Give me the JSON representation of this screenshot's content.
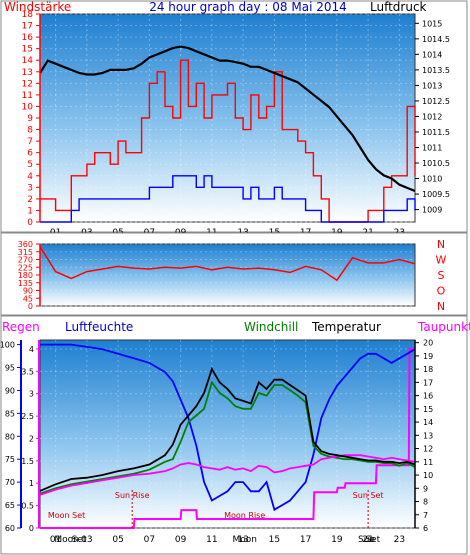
{
  "chart_data": [
    {
      "type": "line",
      "title": "24 hour graph day : 08 Mai 2014",
      "left_axis_label": "Windstärke",
      "right_axis_label": "Luftdruck",
      "x_tick_labels": [
        "01",
        "03",
        "05",
        "07",
        "09",
        "11",
        "13",
        "15",
        "17",
        "19",
        "21",
        "23"
      ],
      "x_range": [
        0,
        24
      ],
      "y_left_range": [
        0,
        18
      ],
      "y_left_ticks": [
        0,
        1,
        2,
        3,
        4,
        5,
        6,
        7,
        8,
        9,
        10,
        11,
        12,
        13,
        14,
        15,
        16,
        17,
        18
      ],
      "y_right_range": [
        1008.6,
        1015.3
      ],
      "y_right_ticks": [
        "1009",
        "1009.5",
        "1010",
        "1010.5",
        "1011",
        "1011.5",
        "1012",
        "1012.5",
        "1013",
        "1013.5",
        "1014",
        "1014.5",
        "1015"
      ],
      "series": [
        {
          "key": "gust",
          "color": "#ff0000",
          "axis": "left",
          "x": [
            0,
            0.5,
            1,
            1.5,
            2,
            2.5,
            3,
            3.5,
            4,
            4.5,
            5,
            5.5,
            6,
            6.5,
            7,
            7.5,
            8,
            8.5,
            9,
            9.5,
            10,
            10.5,
            11,
            11.5,
            12,
            12.5,
            13,
            13.5,
            14,
            14.5,
            15,
            15.5,
            16,
            16.5,
            17,
            17.5,
            18,
            18.5,
            19,
            19.5,
            20,
            20.5,
            21,
            21.5,
            22,
            22.5,
            23,
            23.5,
            24
          ],
          "values": [
            2,
            2,
            1,
            1,
            4,
            4,
            5,
            6,
            6,
            5,
            7,
            6,
            6,
            9,
            12,
            13,
            10,
            9,
            14,
            10,
            12,
            9,
            11,
            11,
            12,
            9,
            8,
            11,
            9,
            10,
            13,
            8,
            8,
            7,
            6,
            4,
            2,
            0,
            0,
            0,
            0,
            0,
            1,
            1,
            3,
            4,
            4,
            10,
            4
          ]
        },
        {
          "key": "wind",
          "color": "#0000ff",
          "axis": "left",
          "x": [
            0,
            0.5,
            1,
            1.5,
            2,
            2.5,
            3,
            3.5,
            4,
            4.5,
            5,
            5.5,
            6,
            6.5,
            7,
            7.5,
            8,
            8.5,
            9,
            9.5,
            10,
            10.5,
            11,
            11.5,
            12,
            12.5,
            13,
            13.5,
            14,
            14.5,
            15,
            15.5,
            16,
            16.5,
            17,
            17.5,
            18,
            18.5,
            19,
            19.5,
            20,
            20.5,
            21,
            21.5,
            22,
            22.5,
            23,
            23.5,
            24
          ],
          "values": [
            0,
            0,
            0,
            0,
            1,
            2,
            2,
            2,
            2,
            2,
            2,
            2,
            2,
            2,
            3,
            3,
            3,
            4,
            4,
            4,
            3,
            4,
            3,
            3,
            3,
            3,
            2,
            3,
            2,
            2,
            3,
            2,
            2,
            2,
            1,
            1,
            0,
            0,
            0,
            0,
            0,
            0,
            0,
            0,
            1,
            1,
            1,
            2,
            1
          ]
        },
        {
          "key": "pressure",
          "color": "#000000",
          "axis": "right",
          "x": [
            0,
            0.5,
            1,
            1.5,
            2,
            2.5,
            3,
            3.5,
            4,
            4.5,
            5,
            5.5,
            6,
            6.5,
            7,
            7.5,
            8,
            8.5,
            9,
            9.5,
            10,
            10.5,
            11,
            11.5,
            12,
            12.5,
            13,
            13.5,
            14,
            14.5,
            15,
            15.5,
            16,
            16.5,
            17,
            17.5,
            18,
            18.5,
            19,
            19.5,
            20,
            20.5,
            21,
            21.5,
            22,
            22.5,
            23,
            23.5,
            24
          ],
          "values": [
            1013.4,
            1013.8,
            1013.7,
            1013.6,
            1013.5,
            1013.4,
            1013.35,
            1013.35,
            1013.4,
            1013.5,
            1013.5,
            1013.5,
            1013.55,
            1013.7,
            1013.9,
            1014.0,
            1014.1,
            1014.2,
            1014.25,
            1014.2,
            1014.1,
            1014.0,
            1013.9,
            1013.8,
            1013.8,
            1013.75,
            1013.7,
            1013.6,
            1013.6,
            1013.5,
            1013.4,
            1013.3,
            1013.2,
            1013.1,
            1012.9,
            1012.7,
            1012.5,
            1012.3,
            1012.0,
            1011.7,
            1011.4,
            1011.0,
            1010.6,
            1010.3,
            1010.1,
            1010.0,
            1009.8,
            1009.7,
            1009.6
          ]
        }
      ]
    },
    {
      "type": "line",
      "y_left_range": [
        0,
        360
      ],
      "y_left_ticks": [
        0,
        45,
        90,
        135,
        180,
        225,
        270,
        315,
        360
      ],
      "compass_labels": [
        "N",
        "W",
        "S",
        "O",
        "N"
      ],
      "series": [
        {
          "key": "direction",
          "color": "#ff0000",
          "x": [
            0,
            1,
            2,
            3,
            4,
            5,
            6,
            7,
            8,
            9,
            10,
            11,
            12,
            13,
            14,
            15,
            16,
            17,
            18,
            19,
            20,
            21,
            22,
            23,
            24
          ],
          "values": [
            345,
            200,
            160,
            200,
            215,
            230,
            220,
            215,
            225,
            220,
            230,
            210,
            225,
            215,
            220,
            210,
            195,
            230,
            210,
            150,
            280,
            250,
            250,
            270,
            245
          ]
        }
      ]
    },
    {
      "type": "line",
      "left_labels": [
        "Regen",
        "Luftfeuchte"
      ],
      "center_labels": [
        "Windchill",
        "Temperatur"
      ],
      "right_label": "Taupunkt",
      "x_tick_labels": [
        "01",
        "03",
        "05",
        "07",
        "09",
        "11",
        "13",
        "15",
        "17",
        "19",
        "21",
        "23"
      ],
      "x_range": [
        0,
        24
      ],
      "rain_axis_ticks": [
        "0",
        "0.5",
        "1",
        "1.5",
        "2",
        "2.5",
        "3",
        "3.5",
        "4"
      ],
      "rain_range": [
        0,
        4.2
      ],
      "humidity_axis_ticks": [
        60,
        65,
        70,
        75,
        80,
        85,
        90,
        95,
        100
      ],
      "humidity_range": [
        60,
        101
      ],
      "temp_axis_ticks": [
        6,
        7,
        8,
        9,
        10,
        11,
        12,
        13,
        14,
        15,
        16,
        17,
        18,
        19,
        20
      ],
      "temp_range": [
        6,
        20.2
      ],
      "annotations": [
        {
          "text": "Moon Set",
          "x": 1.7,
          "color": "#cc0000",
          "marker": false
        },
        {
          "text": "Sun Rise",
          "x": 5.9,
          "color": "#cc0000",
          "marker": true
        },
        {
          "text": "Moon Rise",
          "x": 13.1,
          "color": "#cc0000",
          "marker": false
        },
        {
          "text": "Sun Set",
          "x": 21.0,
          "color": "#cc0000",
          "marker": true
        }
      ],
      "bottom_labels": [
        {
          "text": "Moon",
          "x": 1.7
        },
        {
          "text": "Set",
          "x": 2.5
        },
        {
          "text": "Moon",
          "x": 13.1
        },
        {
          "text": "Sun",
          "x": 20.9
        },
        {
          "text": "Set",
          "x": 21.3
        }
      ],
      "series": [
        {
          "key": "humidity",
          "color": "#0000ff",
          "axis": "humidity",
          "x": [
            0,
            1,
            2,
            3,
            4,
            5,
            6,
            7,
            8,
            8.5,
            9,
            9.5,
            10,
            10.5,
            11,
            11.5,
            12,
            12.5,
            13,
            13.5,
            14,
            14.5,
            15,
            15.5,
            16,
            16.5,
            17,
            17.5,
            18,
            18.5,
            19,
            19.5,
            20,
            20.5,
            21,
            21.5,
            22,
            22.5,
            23,
            23.5,
            24
          ],
          "values": [
            100,
            100,
            100,
            99.5,
            99,
            98,
            97,
            96,
            94,
            92,
            88,
            84,
            78,
            70,
            66,
            67,
            68,
            70,
            70,
            68,
            68,
            70,
            64,
            65,
            66,
            68,
            70,
            76,
            84,
            88,
            91,
            93,
            95,
            97,
            98,
            98,
            97,
            96,
            97,
            98,
            99
          ]
        },
        {
          "key": "temperature",
          "color": "#000000",
          "axis": "temp",
          "x": [
            0,
            1,
            2,
            3,
            4,
            5,
            6,
            7,
            8,
            8.5,
            9,
            9.5,
            10,
            10.5,
            11,
            11.5,
            12,
            12.5,
            13,
            13.5,
            14,
            14.5,
            15,
            15.5,
            16,
            16.5,
            17,
            17.5,
            18,
            18.5,
            19,
            19.5,
            20,
            20.5,
            21,
            21.5,
            22,
            22.5,
            23,
            23.5,
            24
          ],
          "values": [
            8.8,
            9.3,
            9.7,
            9.8,
            10.0,
            10.3,
            10.5,
            10.8,
            11.5,
            12.3,
            13.8,
            14.5,
            15.2,
            16.2,
            18.0,
            17.0,
            16.5,
            15.8,
            15.6,
            15.4,
            17.0,
            16.5,
            17.2,
            17.2,
            16.8,
            16.4,
            16.0,
            12.5,
            11.8,
            11.6,
            11.5,
            11.4,
            11.3,
            11.2,
            11.1,
            11.1,
            11.0,
            11.0,
            10.9,
            11.0,
            10.8
          ]
        },
        {
          "key": "windchill",
          "color": "#008000",
          "axis": "temp",
          "x": [
            0,
            1,
            2,
            3,
            4,
            5,
            6,
            7,
            8,
            8.5,
            9,
            9.5,
            10,
            10.5,
            11,
            11.5,
            12,
            12.5,
            13,
            13.5,
            14,
            14.5,
            15,
            15.5,
            16,
            16.5,
            17,
            17.5,
            18,
            18.5,
            19,
            19.5,
            20,
            20.5,
            21,
            21.5,
            22,
            22.5,
            23,
            23.5,
            24
          ],
          "values": [
            8.6,
            9.0,
            9.3,
            9.5,
            9.7,
            9.9,
            10.1,
            10.4,
            11.0,
            11.2,
            12.5,
            14.0,
            14.5,
            15.0,
            17.0,
            16.2,
            15.8,
            15.2,
            15.0,
            15.0,
            16.2,
            16.0,
            16.8,
            16.8,
            16.4,
            16.0,
            15.5,
            12.2,
            11.6,
            11.4,
            11.3,
            11.2,
            11.2,
            11.1,
            11.0,
            11.0,
            10.9,
            10.9,
            10.7,
            10.9,
            10.6
          ]
        },
        {
          "key": "dewpoint",
          "color": "#ff00ff",
          "axis": "temp",
          "x": [
            0,
            1,
            2,
            3,
            4,
            5,
            6,
            7,
            8,
            8.5,
            9,
            9.5,
            10,
            10.5,
            11,
            11.5,
            12,
            12.5,
            13,
            13.5,
            14,
            14.5,
            15,
            15.5,
            16,
            16.5,
            17,
            17.5,
            18,
            18.5,
            19,
            19.5,
            20,
            20.5,
            21,
            21.5,
            22,
            22.5,
            23,
            23.5,
            24
          ],
          "values": [
            8.5,
            8.9,
            9.2,
            9.4,
            9.6,
            9.8,
            10.0,
            10.1,
            10.3,
            10.5,
            10.8,
            10.9,
            10.8,
            10.6,
            10.5,
            10.4,
            10.6,
            10.4,
            10.5,
            10.3,
            10.7,
            10.6,
            10.2,
            10.3,
            10.5,
            10.6,
            10.7,
            10.8,
            11.2,
            11.3,
            11.4,
            11.5,
            11.5,
            11.5,
            11.4,
            11.3,
            11.2,
            11.3,
            11.2,
            11.1,
            11.0
          ]
        },
        {
          "key": "rain",
          "color": "#ff00ff",
          "axis": "rain",
          "x": [
            0,
            6,
            6.05,
            9,
            9.05,
            10,
            10.05,
            17.5,
            17.55,
            19,
            19.05,
            19.5,
            19.55,
            21.5,
            21.55,
            23.6,
            23.65,
            24
          ],
          "values": [
            0,
            0,
            0.2,
            0.2,
            0.4,
            0.4,
            0.2,
            0.2,
            0.8,
            0.8,
            0.9,
            0.9,
            1.0,
            1.0,
            1.4,
            1.4,
            4.0,
            4.0
          ]
        }
      ]
    }
  ]
}
